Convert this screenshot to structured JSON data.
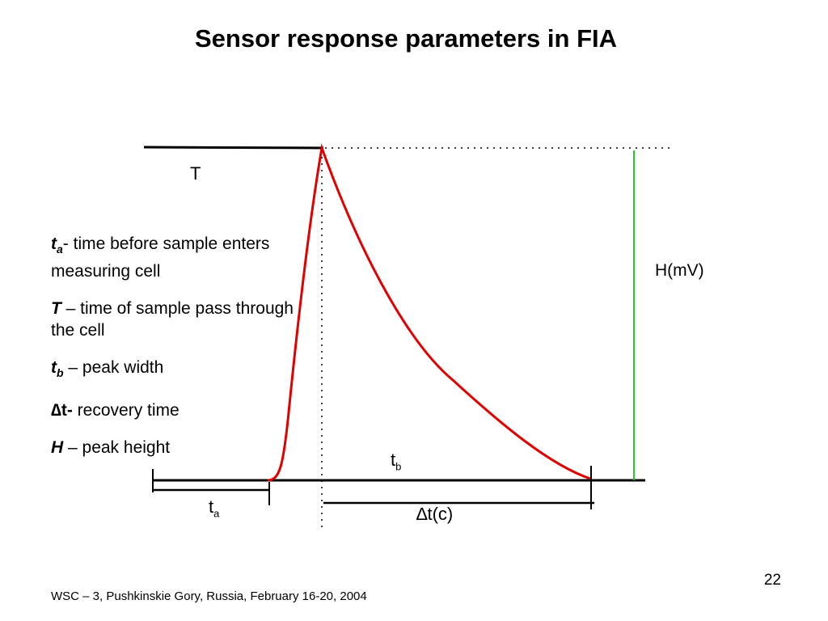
{
  "title": "Sensor response parameters in FIA",
  "diagram": {
    "label_T": "T",
    "label_H": "H(mV)",
    "label_tb_main": "t",
    "label_tb_sub": "b",
    "label_ta_main": "t",
    "label_ta_sub": "a",
    "label_dt": "∆t(c)",
    "colors": {
      "peak": "#e00000",
      "height_line": "#22cc22",
      "lines": "#000000"
    }
  },
  "legend": [
    {
      "term_main": "t",
      "term_sub": "a",
      "text": "- time before sample enters measuring cell"
    },
    {
      "term": "T",
      "text": " – time of sample pass through the cell"
    },
    {
      "term_main": "t",
      "term_sub": "b",
      "text": " – peak width"
    },
    {
      "term": "∆t-",
      "text": " recovery time"
    },
    {
      "term": "H",
      "text": " – peak height"
    }
  ],
  "footer": "WSC – 3, Pushkinskie Gory, Russia, February 16-20, 2004",
  "page_number": "22"
}
